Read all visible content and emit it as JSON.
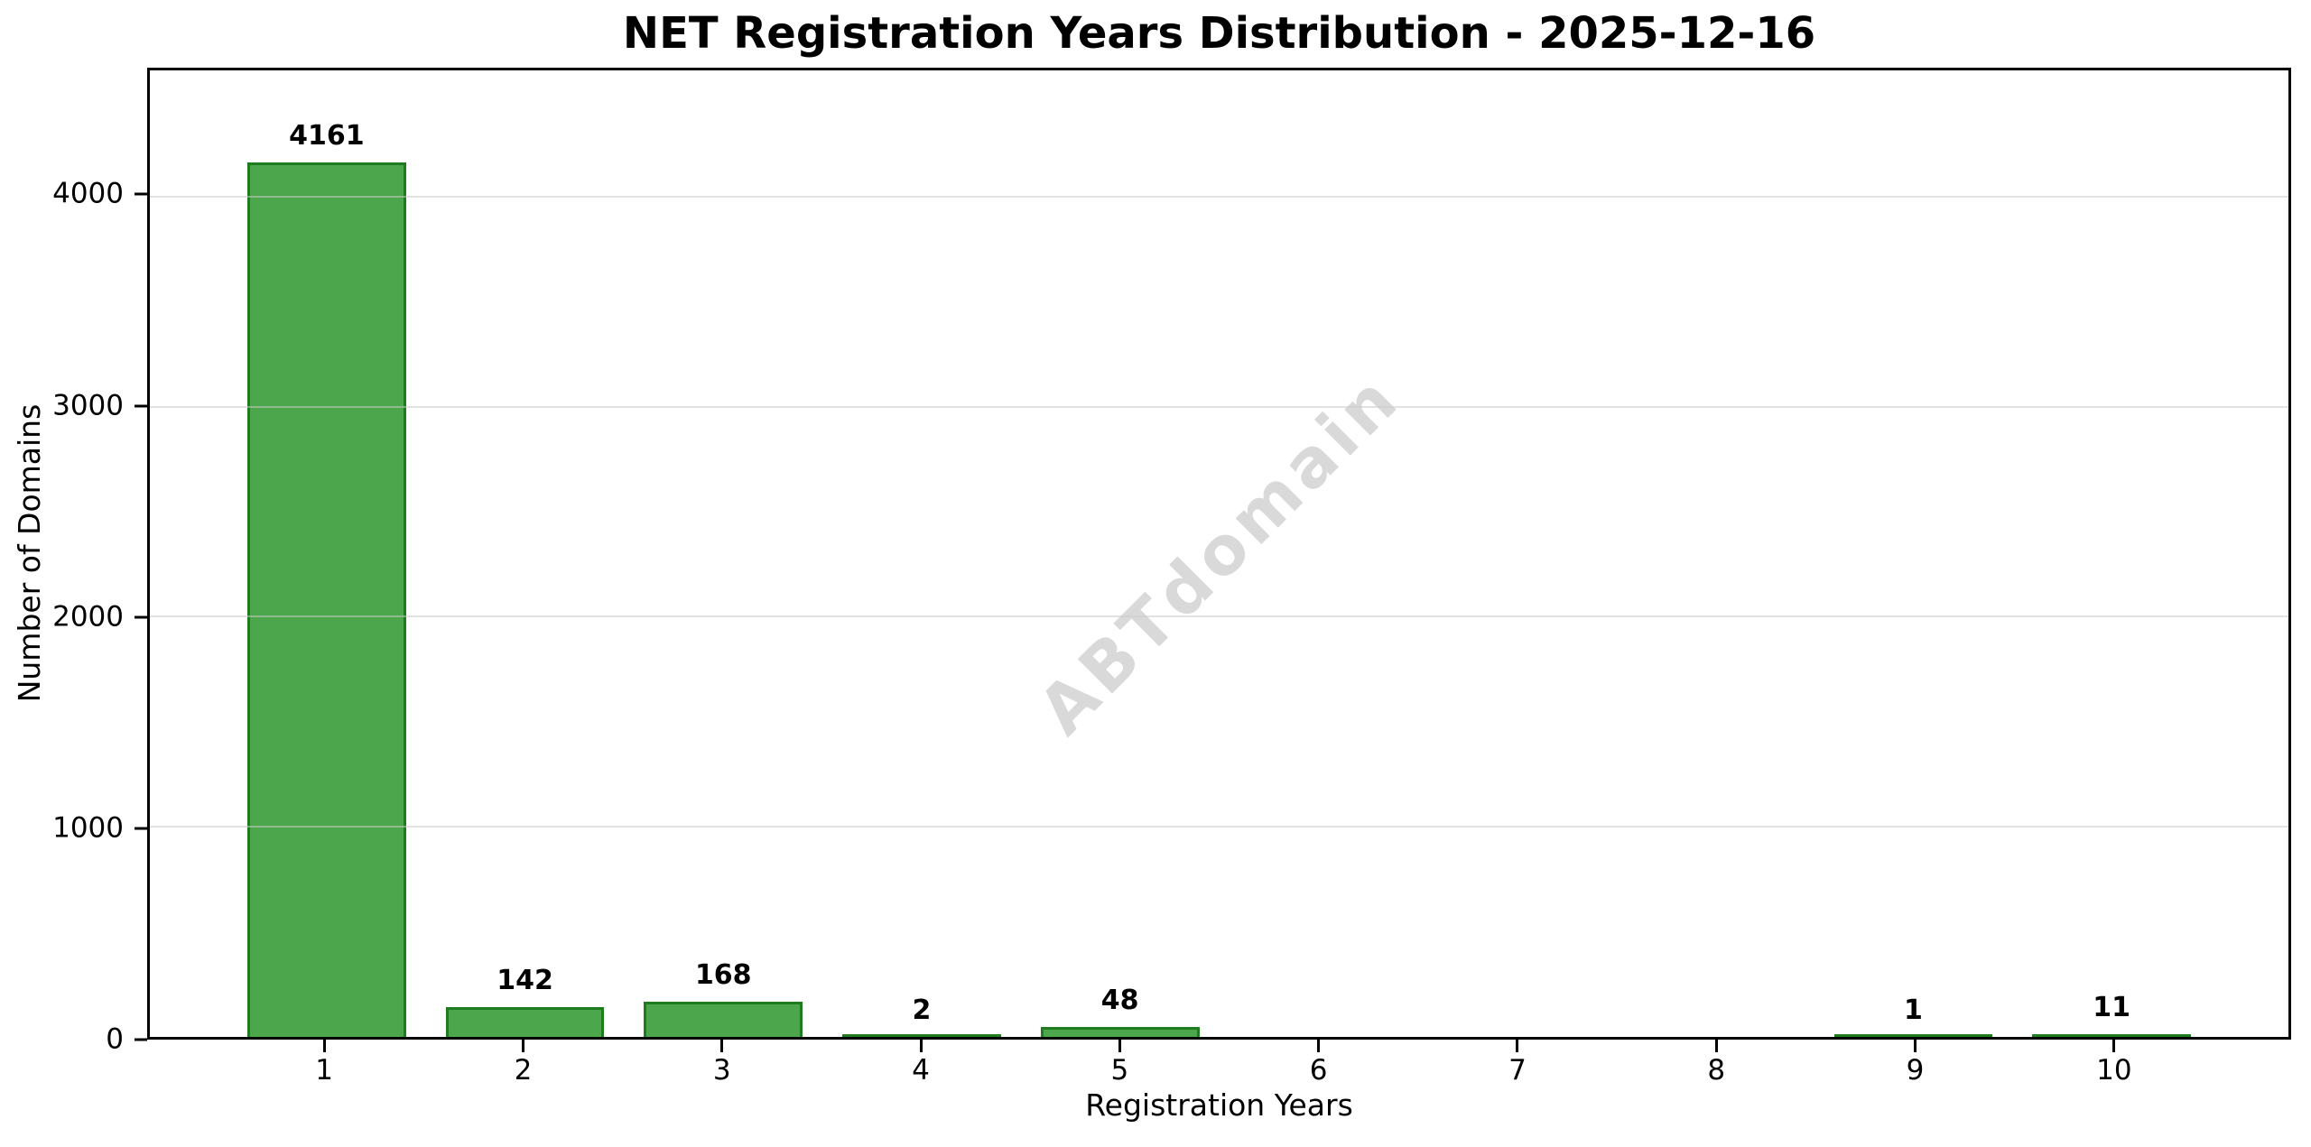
{
  "chart_data": {
    "type": "bar",
    "title": "NET Registration Years Distribution - 2025-12-16",
    "xlabel": "Registration Years",
    "ylabel": "Number of Domains",
    "categories": [
      "1",
      "2",
      "3",
      "4",
      "5",
      "6",
      "7",
      "8",
      "9",
      "10"
    ],
    "values": [
      4161,
      142,
      168,
      2,
      48,
      0,
      0,
      0,
      1,
      11
    ],
    "bar_labels": [
      "4161",
      "142",
      "168",
      "2",
      "48",
      "",
      "",
      "",
      "1",
      "11"
    ],
    "yticks": [
      0,
      1000,
      2000,
      3000,
      4000
    ],
    "ylim": [
      0,
      4600
    ],
    "grid": true,
    "legend": "none",
    "bar_color": "#4CA64C",
    "bar_edge_color": "#1E7B1E",
    "grid_color": "#cbcbcb",
    "watermark": "ABTdomain",
    "watermark_color": "#d9d9d9"
  }
}
